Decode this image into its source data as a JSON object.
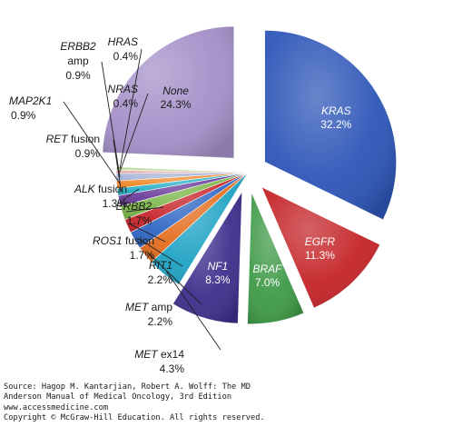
{
  "chart_data": {
    "type": "pie",
    "title": "",
    "slices": [
      {
        "label": "KRAS",
        "italic": true,
        "value": 32.2,
        "value_label": "32.2%",
        "color": "#2e56b8",
        "exploded": true
      },
      {
        "label": "EGFR",
        "italic": true,
        "value": 11.3,
        "value_label": "11.3%",
        "color": "#c42428",
        "exploded": true
      },
      {
        "label": "BRAF",
        "italic": true,
        "value": 7.0,
        "value_label": "7.0%",
        "color": "#3f9a48",
        "exploded": true
      },
      {
        "label": "NF1",
        "italic": true,
        "value": 8.3,
        "value_label": "8.3%",
        "color": "#3c2f8c",
        "exploded": true
      },
      {
        "label": "MET ex14",
        "italic_prefix": "MET",
        "suffix": " ex14",
        "value": 4.3,
        "value_label": "4.3%",
        "color": "#1fa3c4"
      },
      {
        "label": "MET amp",
        "italic_prefix": "MET",
        "suffix": " amp",
        "value": 2.2,
        "value_label": "2.2%",
        "color": "#e46d1e"
      },
      {
        "label": "RIT1",
        "italic": true,
        "value": 2.2,
        "value_label": "2.2%",
        "color": "#2f67c4"
      },
      {
        "label": "ROS1 fusion",
        "italic_prefix": "ROS1",
        "suffix": " fusion",
        "value": 1.7,
        "value_label": "1.7%",
        "color": "#c8252b"
      },
      {
        "label": "ERBB2",
        "italic": true,
        "value": 1.7,
        "value_label": "1.7%",
        "color": "#7ab648"
      },
      {
        "label": "ALK fusion",
        "italic_prefix": "ALK",
        "suffix": " fusion",
        "value": 1.3,
        "value_label": "1.3%",
        "color": "#6a3b9a"
      },
      {
        "label": "RET fusion",
        "italic_prefix": "RET",
        "suffix": " fusion",
        "value": 0.9,
        "value_label": "0.9%",
        "color": "#29b0c8"
      },
      {
        "label": "MAP2K1",
        "italic": true,
        "value": 0.9,
        "value_label": "0.9%",
        "color": "#f08a2a"
      },
      {
        "label": "ERBB2 amp",
        "italic_prefix": "ERBB2",
        "suffix": "amp",
        "value": 0.9,
        "value_label": "0.9%",
        "color": "#a7b4d8"
      },
      {
        "label": "NRAS",
        "italic": true,
        "value": 0.4,
        "value_label": "0.4%",
        "color": "#e8a9a6"
      },
      {
        "label": "HRAS",
        "italic": true,
        "value": 0.4,
        "value_label": "0.4%",
        "color": "#bdd79a"
      },
      {
        "label": "None",
        "italic": true,
        "value": 24.3,
        "value_label": "24.3%",
        "color": "#a590c9",
        "exploded": true
      }
    ]
  },
  "source": {
    "line1": "Source: Hagop M. Kantarjian, Robert A. Wolff: The MD",
    "line2": "Anderson Manual of Medical Oncology, 3rd Edition",
    "line3": "www.accessmedicine.com",
    "line4": "Copyright © McGraw-Hill Education. All rights reserved."
  }
}
